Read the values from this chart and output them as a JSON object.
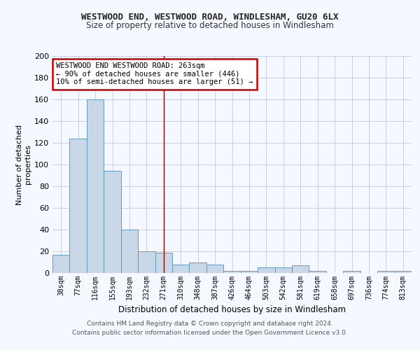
{
  "title1": "WESTWOOD END, WESTWOOD ROAD, WINDLESHAM, GU20 6LX",
  "title2": "Size of property relative to detached houses in Windlesham",
  "xlabel": "Distribution of detached houses by size in Windlesham",
  "ylabel": "Number of detached\nproperties",
  "categories": [
    "38sqm",
    "77sqm",
    "116sqm",
    "155sqm",
    "193sqm",
    "232sqm",
    "271sqm",
    "310sqm",
    "348sqm",
    "387sqm",
    "426sqm",
    "464sqm",
    "503sqm",
    "542sqm",
    "581sqm",
    "619sqm",
    "658sqm",
    "697sqm",
    "736sqm",
    "774sqm",
    "813sqm"
  ],
  "values": [
    17,
    124,
    160,
    94,
    40,
    20,
    19,
    8,
    10,
    8,
    2,
    2,
    5,
    5,
    7,
    2,
    0,
    2,
    0,
    2,
    2
  ],
  "bar_color": "#c8d8e8",
  "bar_edge_color": "#6699bb",
  "vline_x": 6,
  "vline_color": "#8b0000",
  "annotation_text": "WESTWOOD END WESTWOOD ROAD: 263sqm\n← 90% of detached houses are smaller (446)\n10% of semi-detached houses are larger (51) →",
  "annotation_box_color": "white",
  "annotation_box_edge_color": "#cc0000",
  "ylim": [
    0,
    200
  ],
  "yticks": [
    0,
    20,
    40,
    60,
    80,
    100,
    120,
    140,
    160,
    180,
    200
  ],
  "grid_color": "#c0c8d8",
  "footer1": "Contains HM Land Registry data © Crown copyright and database right 2024.",
  "footer2": "Contains public sector information licensed under the Open Government Licence v3.0.",
  "bg_color": "#f5f8ff"
}
